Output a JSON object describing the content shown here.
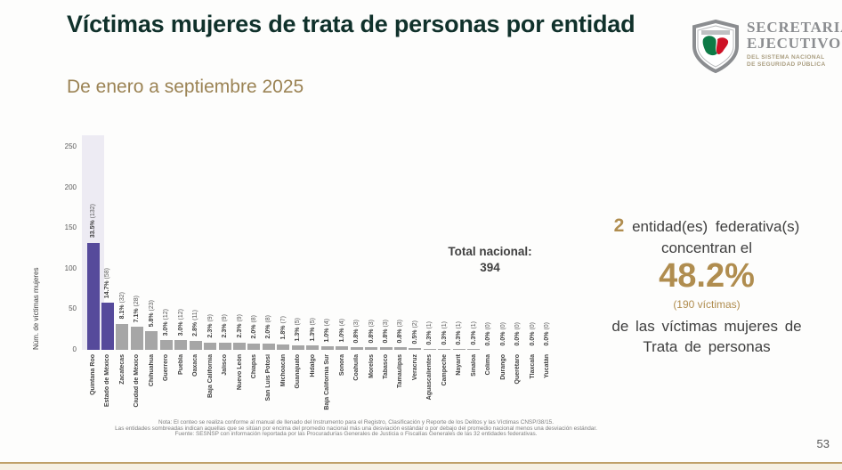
{
  "header": {
    "title": "Víctimas mujeres de trata de personas por entidad",
    "subtitle": "De enero a septiembre 2025",
    "logo": {
      "org_line1": "SECRETARIADO",
      "org_line2": "EJECUTIVO",
      "org_sub1": "DEL SISTEMA NACIONAL",
      "org_sub2": "DE SEGURIDAD PÚBLICA"
    }
  },
  "chart_data": {
    "type": "bar",
    "ylabel": "Núm. de víctimas mujeres",
    "ylim": [
      0,
      250
    ],
    "yticks": [
      0,
      50,
      100,
      150,
      200,
      250
    ],
    "grid": false,
    "categories": [
      "Quintana Roo",
      "Estado de México",
      "Zacatecas",
      "Ciudad de México",
      "Chihuahua",
      "Guerrero",
      "Puebla",
      "Oaxaca",
      "Baja California",
      "Jalisco",
      "Nuevo León",
      "Chiapas",
      "San Luis Potosí",
      "Michoacán",
      "Guanajuato",
      "Hidalgo",
      "Baja California Sur",
      "Sonora",
      "Coahuila",
      "Morelos",
      "Tabasco",
      "Tamaulipas",
      "Veracruz",
      "Aguascalientes",
      "Campeche",
      "Nayarit",
      "Sinaloa",
      "Colima",
      "Durango",
      "Querétaro",
      "Tlaxcala",
      "Yucatán"
    ],
    "values": [
      132,
      58,
      32,
      28,
      23,
      12,
      12,
      11,
      9,
      9,
      9,
      8,
      8,
      7,
      5,
      5,
      4,
      4,
      3,
      3,
      3,
      3,
      2,
      1,
      1,
      1,
      1,
      0,
      0,
      0,
      0,
      0
    ],
    "percents": [
      "33.5%",
      "14.7%",
      "8.1%",
      "7.1%",
      "5.8%",
      "3.0%",
      "3.0%",
      "2.8%",
      "2.3%",
      "2.3%",
      "2.3%",
      "2.0%",
      "2.0%",
      "1.8%",
      "1.3%",
      "1.3%",
      "1.0%",
      "1.0%",
      "0.8%",
      "0.8%",
      "0.8%",
      "0.8%",
      "0.5%",
      "0.3%",
      "0.3%",
      "0.3%",
      "0.3%",
      "0.0%",
      "0.0%",
      "0.0%",
      "0.0%",
      "0.0%"
    ],
    "highlight_entities": [
      "Quintana Roo",
      "Estado de México"
    ],
    "shaded_entities": [
      "Quintana Roo"
    ],
    "bar_color_highlight": "#564a9b",
    "bar_color_default": "#a6a6a6",
    "shade_color": "#edebf3",
    "total_label": "Total nacional:",
    "total_value": "394"
  },
  "callout": {
    "count": "2",
    "line1_rest": "entidad(es) federativa(s)",
    "line2": "concentran el",
    "percent": "48.2%",
    "victims": "(190 víctimas)",
    "line3": "de las víctimas mujeres de",
    "line4": "Trata de personas",
    "accent_color": "#b08d4f"
  },
  "footnotes": [
    "Nota: El conteo se realiza conforme al manual de llenado del Instrumento para el Registro, Clasificación y Reporte de los Delitos y las Víctimas CNSP/38/15.",
    "Las entidades sombreadas indican aquellas que se sitúan por encima del promedio nacional más una desviación estándar o por debajo del promedio nacional menos una desviación estándar.",
    "Fuente: SESNSP con información reportada por las Procuradurías Generales de Justicia o Fiscalías Generales de las 32 entidades federativas."
  ],
  "page_number": "53"
}
